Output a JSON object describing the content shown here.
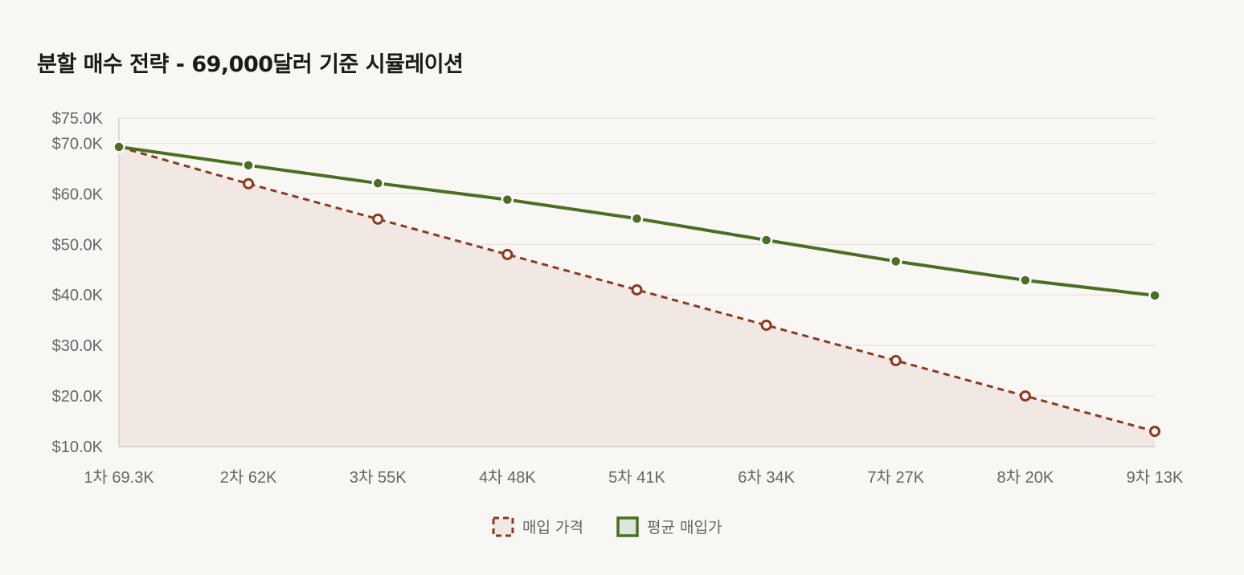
{
  "chart_data": {
    "type": "line",
    "title": "분할 매수 전략 - 69,000달러 기준 시뮬레이션",
    "categories": [
      "1차 69.3K",
      "2차 62K",
      "3차 55K",
      "4차 48K",
      "5차 41K",
      "6차 34K",
      "7차 27K",
      "8차 20K",
      "9차 13K"
    ],
    "series": [
      {
        "name": "매입 가격",
        "values": [
          69300,
          62000,
          55000,
          48000,
          41000,
          34000,
          27000,
          20000,
          13000
        ],
        "style": "dashed",
        "fill": true,
        "color": "#8b3a1f",
        "fill_color": "#f2e8e3",
        "marker": "hollow-circle"
      },
      {
        "name": "평균 매입가",
        "values": [
          69300,
          65650,
          62100,
          58850,
          55100,
          50850,
          46650,
          42900,
          39900
        ],
        "style": "solid",
        "fill": false,
        "color": "#4a6e22",
        "marker": "filled-circle"
      }
    ],
    "yticks": [
      "$10.0K",
      "$20.0K",
      "$30.0K",
      "$40.0K",
      "$50.0K",
      "$60.0K",
      "$70.0K",
      "$75.0K"
    ],
    "ytick_values": [
      10000,
      20000,
      30000,
      40000,
      50000,
      60000,
      70000,
      75000
    ],
    "ylim": [
      10000,
      75000
    ],
    "grid": true,
    "legend_position": "bottom"
  }
}
